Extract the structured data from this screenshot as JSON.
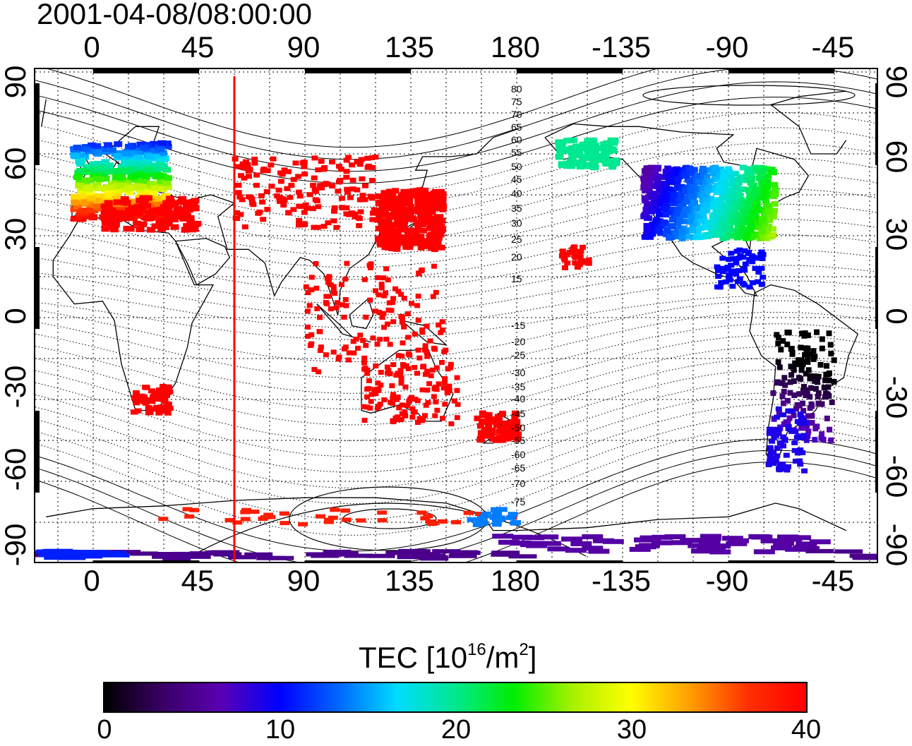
{
  "title": "2001-04-08/08:00:00",
  "x_ticks": [
    "0",
    "45",
    "90",
    "135",
    "180",
    "-135",
    "-90",
    "-45"
  ],
  "y_ticks_left": [
    "90",
    "60",
    "30",
    "0",
    "-30",
    "-60",
    "-90"
  ],
  "y_ticks_right": [
    "90",
    "60",
    "30",
    "0",
    "-30",
    "-60",
    "-90"
  ],
  "contour_labels": [
    "80",
    "75",
    "70",
    "65",
    "60",
    "55",
    "50",
    "45",
    "40",
    "35",
    "30",
    "25",
    "20",
    "15",
    "-15",
    "-20",
    "-25",
    "-30",
    "-35",
    "-40",
    "-45",
    "-50",
    "-55",
    "-60",
    "-65",
    "-70",
    "-75"
  ],
  "colorbar": {
    "title_prefix": "TEC  [10",
    "title_sup1": "16",
    "title_mid": "/m",
    "title_sup2": "2",
    "title_suffix": "]",
    "ticks": [
      "0",
      "10",
      "20",
      "30",
      "40"
    ],
    "min": 0,
    "max": 40
  },
  "meridian_marker": {
    "longitude": 60,
    "color": "#ff0000"
  },
  "colors": {
    "colormap": [
      "#000000",
      "#3a0066",
      "#5a00b4",
      "#0000ff",
      "#0066ff",
      "#00dcff",
      "#00e890",
      "#00ee00",
      "#a8f000",
      "#ffff00",
      "#ffa000",
      "#ff3000",
      "#ff0000"
    ]
  }
}
